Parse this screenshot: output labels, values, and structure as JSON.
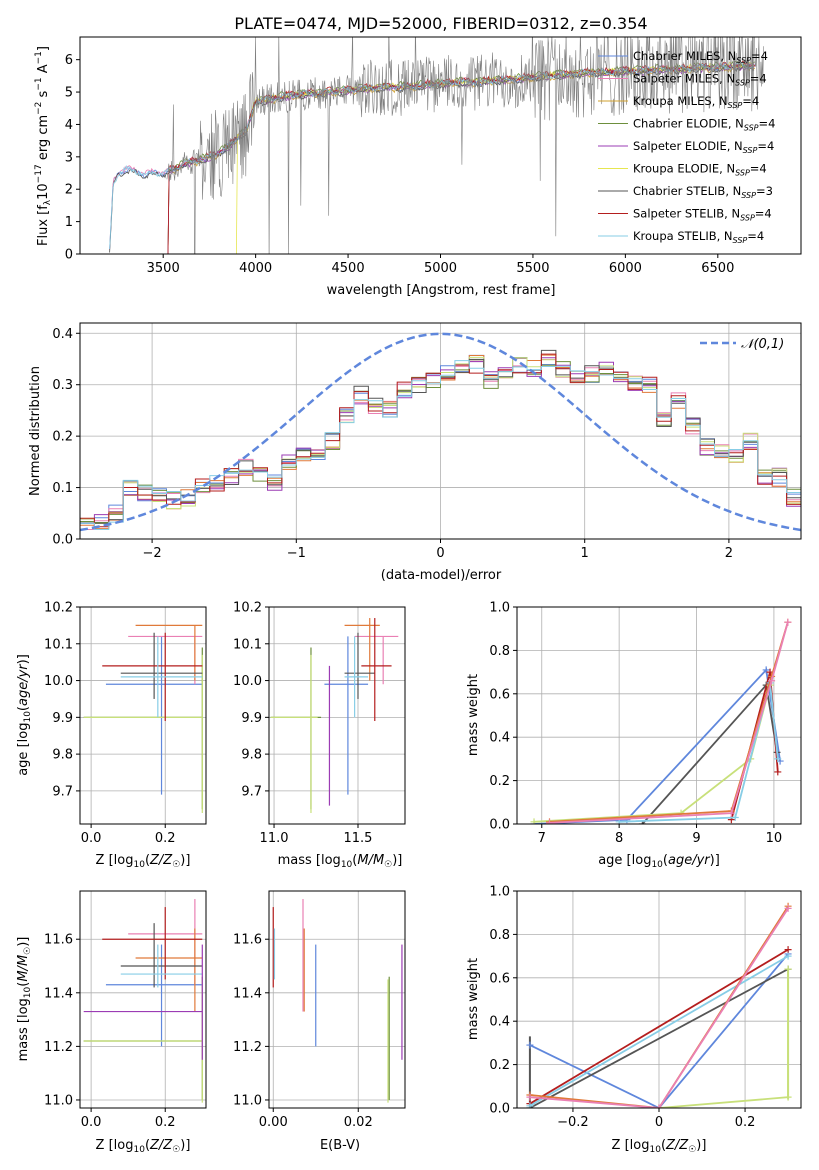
{
  "title": "PLATE=0474, MJD=52000, FIBERID=0312, z=0.354",
  "colors": {
    "chabrier_miles": "#5f87dc",
    "salpeter_miles": "#ea80b4",
    "kroupa_miles": "#d2a02d",
    "chabrier_elodie": "#6d8f3c",
    "salpeter_elodie": "#9b3cb4",
    "kroupa_elodie": "#e6e650",
    "chabrier_stelib": "#555555",
    "salpeter_stelib": "#b41e1e",
    "kroupa_stelib": "#87cde6",
    "data_grey": "#7f7f7f",
    "orange": "#e07a3a",
    "lime": "#c8e07a",
    "gaussian": "#5f87dc"
  },
  "chart_data": [
    {
      "id": "spectrum",
      "type": "line",
      "xlabel": "wavelength [Angstrom, rest frame]",
      "ylabel": "Flux [f_λ 10^-17 erg cm^-2 s^-1 A^-1]",
      "xlim": [
        3050,
        6950
      ],
      "ylim": [
        0,
        6.7
      ],
      "xticks": [
        3500,
        4000,
        4500,
        5000,
        5500,
        6000,
        6500
      ],
      "yticks": [
        0,
        1,
        2,
        3,
        4,
        5,
        6
      ],
      "legend_position": "upper-right",
      "legend": [
        {
          "name": "Chabrier MILES, N",
          "sub": "SSP",
          "suffix": "=4",
          "color": "#5f87dc"
        },
        {
          "name": "Salpeter MILES, N",
          "sub": "SSP",
          "suffix": "=4",
          "color": "#ea80b4"
        },
        {
          "name": "Kroupa MILES, N",
          "sub": "SSP",
          "suffix": "=4",
          "color": "#d2a02d"
        },
        {
          "name": "Chabrier ELODIE, N",
          "sub": "SSP",
          "suffix": "=4",
          "color": "#6d8f3c"
        },
        {
          "name": "Salpeter ELODIE, N",
          "sub": "SSP",
          "suffix": "=4",
          "color": "#9b3cb4"
        },
        {
          "name": "Kroupa ELODIE, N",
          "sub": "SSP",
          "suffix": "=4",
          "color": "#e6e650"
        },
        {
          "name": "Chabrier STELIB, N",
          "sub": "SSP",
          "suffix": "=3",
          "color": "#555555"
        },
        {
          "name": "Salpeter STELIB, N",
          "sub": "SSP",
          "suffix": "=4",
          "color": "#b41e1e"
        },
        {
          "name": "Kroupa STELIB, N",
          "sub": "SSP",
          "suffix": "=4",
          "color": "#87cde6"
        }
      ],
      "model_curve": {
        "x": [
          3210,
          3230,
          3260,
          3300,
          3350,
          3400,
          3450,
          3500,
          3550,
          3600,
          3650,
          3700,
          3750,
          3800,
          3850,
          3900,
          3950,
          4000,
          4100,
          4200,
          4300,
          4400,
          4500,
          4600,
          4700,
          4800,
          4900,
          5000,
          5100,
          5200,
          5300,
          5400,
          5500,
          5600,
          5700,
          5800,
          5900,
          6000,
          6100,
          6200,
          6300,
          6400,
          6500,
          6600,
          6700
        ],
        "y": [
          0.1,
          2.2,
          2.5,
          2.6,
          2.55,
          2.45,
          2.5,
          2.5,
          2.6,
          2.75,
          2.85,
          2.9,
          3.0,
          3.1,
          3.3,
          3.6,
          3.8,
          4.7,
          4.8,
          4.9,
          4.95,
          5.0,
          5.05,
          5.1,
          5.15,
          5.15,
          5.2,
          5.25,
          5.3,
          5.3,
          5.35,
          5.4,
          5.45,
          5.5,
          5.55,
          5.6,
          5.6,
          5.65,
          5.65,
          5.7,
          5.7,
          5.75,
          5.75,
          5.8,
          5.8
        ]
      },
      "data_start": 3520
    },
    {
      "id": "residuals",
      "type": "line",
      "xlabel": "(data-model)/error",
      "ylabel": "Normed distribution",
      "xlim": [
        -2.5,
        2.5
      ],
      "ylim": [
        0,
        0.42
      ],
      "xticks": [
        -2,
        -1,
        0,
        1,
        2
      ],
      "yticks": [
        0.0,
        0.1,
        0.2,
        0.3,
        0.4
      ],
      "grid": true,
      "legend_position": "upper-right",
      "gaussian_label": "𝒩(0,1)",
      "hist_bins": 50,
      "hist_base": [
        0.025,
        0.03,
        0.05,
        0.1,
        0.09,
        0.085,
        0.075,
        0.08,
        0.1,
        0.11,
        0.12,
        0.14,
        0.13,
        0.11,
        0.15,
        0.16,
        0.17,
        0.19,
        0.24,
        0.28,
        0.26,
        0.25,
        0.29,
        0.3,
        0.31,
        0.32,
        0.33,
        0.34,
        0.31,
        0.33,
        0.34,
        0.33,
        0.35,
        0.33,
        0.31,
        0.32,
        0.33,
        0.31,
        0.3,
        0.3,
        0.23,
        0.27,
        0.22,
        0.18,
        0.17,
        0.16,
        0.19,
        0.12,
        0.12,
        0.08
      ]
    },
    {
      "id": "age_vs_Z",
      "type": "scatter",
      "xlabel": "Z [log10(Z/Z☉)]",
      "ylabel": "age [log10(age/yr)]",
      "xlim": [
        -0.03,
        0.31
      ],
      "ylim": [
        9.61,
        10.2
      ],
      "xticks": [
        0.0,
        0.2
      ],
      "yticks": [
        9.7,
        9.8,
        9.9,
        10.0,
        10.1,
        10.2
      ],
      "grid": true,
      "crosses": [
        {
          "x": 0.19,
          "y": 9.99,
          "xl": 0.04,
          "xr": 0.3,
          "yl": 9.69,
          "yu": 10.12,
          "color": "#5f87dc"
        },
        {
          "x": 0.28,
          "y": 10.12,
          "xl": 0.1,
          "xr": 0.3,
          "yl": 9.99,
          "yu": 10.12,
          "color": "#ea80b4"
        },
        {
          "x": 0.28,
          "y": 10.15,
          "xl": 0.12,
          "xr": 0.3,
          "yl": 10.0,
          "yu": 10.15,
          "color": "#e07a3a"
        },
        {
          "x": 0.3,
          "y": 9.9,
          "xl": -0.02,
          "xr": 0.3,
          "yl": 9.65,
          "yu": 10.09,
          "color": "#6d8f3c"
        },
        {
          "x": 0.3,
          "y": 9.9,
          "xl": -0.02,
          "xr": 0.3,
          "yl": 9.64,
          "yu": 10.07,
          "color": "#c8e07a"
        },
        {
          "x": 0.17,
          "y": 10.02,
          "xl": 0.08,
          "xr": 0.3,
          "yl": 9.95,
          "yu": 10.13,
          "color": "#555555"
        },
        {
          "x": 0.2,
          "y": 10.04,
          "xl": 0.03,
          "xr": 0.3,
          "yl": 9.89,
          "yu": 10.13,
          "color": "#b41e1e"
        },
        {
          "x": 0.18,
          "y": 10.01,
          "xl": 0.08,
          "xr": 0.3,
          "yl": 9.9,
          "yu": 10.12,
          "color": "#87cde6"
        }
      ]
    },
    {
      "id": "age_vs_mass",
      "type": "scatter",
      "xlabel": "mass [log10(M/M☉)]",
      "xlim": [
        10.97,
        11.78
      ],
      "ylim": [
        9.61,
        10.2
      ],
      "xticks": [
        11.0,
        11.5
      ],
      "yticks": [
        9.7,
        9.8,
        9.9,
        10.0,
        10.1,
        10.2
      ],
      "grid": true,
      "crosses": [
        {
          "x": 11.44,
          "y": 9.99,
          "xl": 11.3,
          "xr": 11.56,
          "yl": 9.69,
          "yu": 10.12,
          "color": "#5f87dc"
        },
        {
          "x": 11.65,
          "y": 10.12,
          "xl": 11.48,
          "xr": 11.74,
          "yl": 9.99,
          "yu": 10.12,
          "color": "#ea80b4"
        },
        {
          "x": 11.57,
          "y": 10.15,
          "xl": 11.42,
          "xr": 11.63,
          "yl": 10.0,
          "yu": 10.17,
          "color": "#e07a3a"
        },
        {
          "x": 11.22,
          "y": 9.9,
          "xl": 10.98,
          "xr": 11.28,
          "yl": 9.65,
          "yu": 10.09,
          "color": "#6d8f3c"
        },
        {
          "x": 11.22,
          "y": 9.9,
          "xl": 10.98,
          "xr": 11.26,
          "yl": 9.64,
          "yu": 10.07,
          "color": "#c8e07a"
        },
        {
          "x": 11.5,
          "y": 10.02,
          "xl": 11.42,
          "xr": 11.6,
          "yl": 9.95,
          "yu": 10.13,
          "color": "#555555"
        },
        {
          "x": 11.6,
          "y": 10.04,
          "xl": 11.52,
          "xr": 11.7,
          "yl": 9.89,
          "yu": 10.17,
          "color": "#b41e1e"
        },
        {
          "x": 11.48,
          "y": 10.01,
          "xl": 11.42,
          "xr": 11.56,
          "yl": 9.9,
          "yu": 10.12,
          "color": "#87cde6"
        },
        {
          "x": 11.33,
          "y": 9.9,
          "xl": 11.33,
          "xr": 11.33,
          "yl": 9.66,
          "yu": 10.04,
          "color": "#9b3cb4"
        }
      ]
    },
    {
      "id": "weight_vs_age",
      "type": "line",
      "xlabel": "age [log10(age/yr)]",
      "ylabel": "mass weight",
      "xlim": [
        6.68,
        10.35
      ],
      "ylim": [
        0,
        1.0
      ],
      "xticks": [
        7,
        8,
        9,
        10
      ],
      "yticks": [
        0.0,
        0.2,
        0.4,
        0.6,
        0.8,
        1.0
      ],
      "grid": true,
      "series": [
        {
          "color": "#5f87dc",
          "x": [
            6.9,
            8.1,
            9.9,
            10.08
          ],
          "y": [
            0.0,
            0.02,
            0.71,
            0.29
          ]
        },
        {
          "color": "#555555",
          "x": [
            8.3,
            9.9,
            10.04
          ],
          "y": [
            0.0,
            0.64,
            0.33
          ]
        },
        {
          "color": "#b41e1e",
          "x": [
            9.45,
            9.95,
            10.05
          ],
          "y": [
            0.02,
            0.7,
            0.24
          ]
        },
        {
          "color": "#c8e07a",
          "x": [
            6.9,
            8.8,
            9.7,
            9.95
          ],
          "y": [
            0.01,
            0.05,
            0.3,
            0.64
          ]
        },
        {
          "color": "#87cde6",
          "x": [
            8.0,
            9.5,
            9.95,
            10.05
          ],
          "y": [
            0.01,
            0.03,
            0.65,
            0.3
          ]
        },
        {
          "color": "#e07a3a",
          "x": [
            7.1,
            9.45,
            9.97,
            10.18
          ],
          "y": [
            0.01,
            0.06,
            0.68,
            0.93
          ]
        },
        {
          "color": "#ea80b4",
          "x": [
            7.1,
            9.45,
            9.97,
            10.18
          ],
          "y": [
            0.005,
            0.05,
            0.66,
            0.93
          ]
        }
      ]
    },
    {
      "id": "mass_vs_Z",
      "type": "scatter",
      "xlabel": "Z [log10(Z/Z☉)]",
      "ylabel": "mass [log10(M/M☉)]",
      "xlim": [
        -0.03,
        0.31
      ],
      "ylim": [
        10.97,
        11.78
      ],
      "xticks": [
        0.0,
        0.2
      ],
      "yticks": [
        11.0,
        11.2,
        11.4,
        11.6
      ],
      "grid": true,
      "crosses": [
        {
          "x": 0.19,
          "y": 11.43,
          "xl": 0.04,
          "xr": 0.3,
          "yl": 11.2,
          "yu": 11.58,
          "color": "#5f87dc"
        },
        {
          "x": 0.28,
          "y": 11.62,
          "xl": 0.1,
          "xr": 0.3,
          "yl": 11.43,
          "yu": 11.75,
          "color": "#ea80b4"
        },
        {
          "x": 0.28,
          "y": 11.53,
          "xl": 0.12,
          "xr": 0.3,
          "yl": 11.33,
          "yu": 11.64,
          "color": "#e07a3a"
        },
        {
          "x": 0.3,
          "y": 11.22,
          "xl": -0.02,
          "xr": 0.3,
          "yl": 11.0,
          "yu": 11.46,
          "color": "#6d8f3c"
        },
        {
          "x": 0.3,
          "y": 11.22,
          "xl": -0.02,
          "xr": 0.3,
          "yl": 10.99,
          "yu": 11.45,
          "color": "#c8e07a"
        },
        {
          "x": 0.17,
          "y": 11.5,
          "xl": 0.08,
          "xr": 0.3,
          "yl": 11.42,
          "yu": 11.66,
          "color": "#555555"
        },
        {
          "x": 0.2,
          "y": 11.6,
          "xl": 0.03,
          "xr": 0.3,
          "yl": 11.45,
          "yu": 11.72,
          "color": "#b41e1e"
        },
        {
          "x": 0.18,
          "y": 11.47,
          "xl": 0.08,
          "xr": 0.3,
          "yl": 11.42,
          "yu": 11.58,
          "color": "#87cde6"
        },
        {
          "x": 0.3,
          "y": 11.33,
          "xl": -0.02,
          "xr": 0.3,
          "yl": 11.15,
          "yu": 11.58,
          "color": "#9b3cb4"
        }
      ]
    },
    {
      "id": "mass_vs_ebv",
      "type": "scatter",
      "xlabel": "E(B-V)",
      "xlim": [
        -0.001,
        0.031
      ],
      "ylim": [
        10.97,
        11.78
      ],
      "xticks": [
        0.0,
        0.02
      ],
      "yticks": [
        11.0,
        11.2,
        11.4,
        11.6
      ],
      "grid": true,
      "bars": [
        {
          "x": 0.0,
          "yl": 11.42,
          "yu": 11.72,
          "color": "#b41e1e"
        },
        {
          "x": 0.0,
          "yl": 11.45,
          "yu": 11.64,
          "color": "#87cde6"
        },
        {
          "x": 0.007,
          "yl": 11.33,
          "yu": 11.75,
          "color": "#ea80b4"
        },
        {
          "x": 0.007,
          "yl": 11.33,
          "yu": 11.64,
          "color": "#e07a3a"
        },
        {
          "x": 0.01,
          "yl": 11.2,
          "yu": 11.58,
          "color": "#5f87dc"
        },
        {
          "x": 0.027,
          "yl": 11.0,
          "yu": 11.46,
          "color": "#6d8f3c"
        },
        {
          "x": 0.027,
          "yl": 10.99,
          "yu": 11.45,
          "color": "#c8e07a"
        },
        {
          "x": 0.03,
          "yl": 11.15,
          "yu": 11.58,
          "color": "#9b3cb4"
        }
      ]
    },
    {
      "id": "weight_vs_Z",
      "type": "line",
      "xlabel": "Z [log10(Z/Z☉)]",
      "ylabel": "mass weight",
      "xlim": [
        -0.33,
        0.33
      ],
      "ylim": [
        0,
        1.0
      ],
      "xticks": [
        -0.2,
        0.0,
        0.2
      ],
      "yticks": [
        0.0,
        0.2,
        0.4,
        0.6,
        0.8,
        1.0
      ],
      "grid": true,
      "series": [
        {
          "color": "#5f87dc",
          "x": [
            -0.3,
            0.0,
            0.3
          ],
          "y": [
            0.29,
            0.0,
            0.71
          ]
        },
        {
          "color": "#555555",
          "x": [
            -0.3,
            0.3
          ],
          "y": [
            0.0,
            0.64
          ]
        },
        {
          "color": "#b41e1e",
          "x": [
            -0.3,
            0.3
          ],
          "y": [
            0.02,
            0.73
          ]
        },
        {
          "color": "#87cde6",
          "x": [
            -0.3,
            0.3
          ],
          "y": [
            0.01,
            0.7
          ]
        },
        {
          "color": "#c8e07a",
          "x": [
            0.0,
            0.3,
            0.3
          ],
          "y": [
            0.0,
            0.05,
            0.64
          ]
        },
        {
          "color": "#e07a3a",
          "x": [
            -0.3,
            0.0,
            0.3
          ],
          "y": [
            0.06,
            0.0,
            0.93
          ]
        },
        {
          "color": "#ea80b4",
          "x": [
            -0.3,
            0.0,
            0.3
          ],
          "y": [
            0.05,
            0.0,
            0.92
          ]
        }
      ],
      "extra_bars": [
        {
          "x": -0.3,
          "yl": 0.0,
          "yu": 0.33,
          "color": "#555555"
        },
        {
          "x": 0.3,
          "yl": 0.04,
          "yu": 0.64,
          "color": "#c8e07a"
        }
      ]
    }
  ]
}
